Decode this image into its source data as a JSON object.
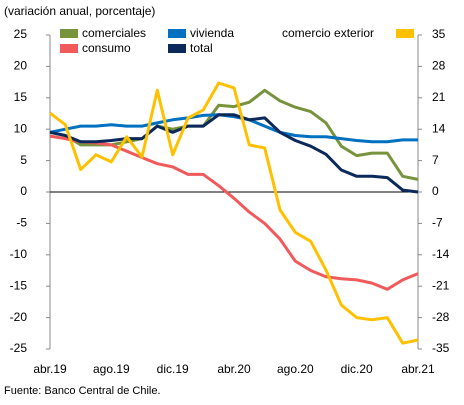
{
  "chart_data": {
    "type": "line",
    "subtitle": "(variación anual, porcentaje)",
    "source": "Fuente: Banco Central de Chile.",
    "categories": [
      "abr.19",
      null,
      null,
      null,
      "ago.19",
      null,
      null,
      null,
      "dic.19",
      null,
      null,
      null,
      "abr.20",
      null,
      null,
      null,
      "ago.20",
      null,
      null,
      null,
      "dic.20",
      null,
      null,
      null,
      "abr.21"
    ],
    "ylim": [
      -25,
      25
    ],
    "yticks": [
      -25,
      -20,
      -15,
      -10,
      -5,
      0,
      5,
      10,
      15,
      20,
      25
    ],
    "y2lim": [
      -35,
      35
    ],
    "y2ticks": [
      -35,
      -28,
      -21,
      -14,
      -7,
      0,
      7,
      14,
      21,
      28,
      35
    ],
    "series": [
      {
        "name": "comerciales",
        "color": "#77933c",
        "values": [
          9.5,
          9,
          7.5,
          7.5,
          7.5,
          8,
          8.5,
          10.5,
          10,
          10.5,
          10.5,
          13.8,
          13.6,
          14.3,
          16.2,
          14.5,
          13.5,
          12.8,
          11,
          7.3,
          5.8,
          6.2,
          6.2,
          2.5,
          2.0
        ]
      },
      {
        "name": "vivienda",
        "color": "#0070c0",
        "values": [
          9.5,
          10,
          10.5,
          10.5,
          10.7,
          10.5,
          10.5,
          11,
          11.5,
          11.8,
          12.2,
          12.3,
          12,
          11.5,
          10.5,
          9.5,
          9,
          8.8,
          8.8,
          8.5,
          8.2,
          8,
          8,
          8.3,
          8.3
        ]
      },
      {
        "name": "consumo",
        "color": "#f15a5a",
        "values": [
          8.9,
          8.5,
          8,
          7.8,
          7.5,
          6.5,
          5.5,
          4.5,
          4,
          2.8,
          2.8,
          1,
          -1,
          -3.2,
          -5,
          -7.5,
          -11,
          -12.5,
          -13.5,
          -13.8,
          -14,
          -14.5,
          -15.5,
          -14,
          -13
        ]
      },
      {
        "name": "total",
        "color": "#0b2a5b",
        "values": [
          9.5,
          9,
          8,
          8,
          8.2,
          8.5,
          8.5,
          10.5,
          9.5,
          10.5,
          10.5,
          12.3,
          12.3,
          11.5,
          11.8,
          9.5,
          8.2,
          7.3,
          6,
          3.5,
          2.5,
          2.5,
          2.3,
          0.3,
          0
        ]
      },
      {
        "name": "comercio exterior",
        "color": "#ffc000",
        "axis": "y2",
        "values": [
          17.6,
          15,
          5,
          8.3,
          6.7,
          12.3,
          7.8,
          22.7,
          8.3,
          16.5,
          18.3,
          24.3,
          23.2,
          10.5,
          9.8,
          -4,
          -9,
          -11,
          -17.4,
          -25.2,
          -28,
          -28.5,
          -28,
          -33.7,
          -33
        ]
      }
    ]
  }
}
